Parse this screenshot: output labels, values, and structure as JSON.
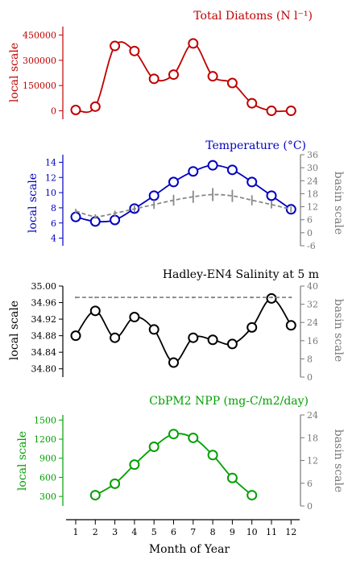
{
  "x_axis": {
    "label": "Month of Year",
    "ticks": [
      "1",
      "2",
      "3",
      "4",
      "5",
      "6",
      "7",
      "8",
      "9",
      "10",
      "11",
      "12"
    ]
  },
  "chart_data": [
    {
      "type": "line",
      "title": "Total Diatoms (N l⁻¹)",
      "ylabel": "local scale",
      "color": "#c00000",
      "ylim": [
        -50000,
        500000
      ],
      "yticks": [
        0,
        150000,
        300000,
        450000
      ],
      "ytick_labels": [
        "0",
        "150000",
        "300000",
        "450000"
      ],
      "x": [
        1,
        2,
        3,
        4,
        5,
        6,
        7,
        8,
        9,
        10,
        11,
        12
      ],
      "series": [
        {
          "values": [
            5000,
            25000,
            385000,
            355000,
            190000,
            215000,
            400000,
            205000,
            165000,
            45000,
            0,
            0
          ]
        }
      ]
    },
    {
      "type": "line",
      "title": "Temperature (°C)",
      "ylabel": "local scale",
      "ylabel_right": "basin scale",
      "color": "#0000c0",
      "ylim": [
        3,
        15
      ],
      "yticks": [
        4,
        6,
        8,
        10,
        12,
        14
      ],
      "ytick_labels": [
        "4",
        "6",
        "8",
        "10",
        "12",
        "14"
      ],
      "ylim_right": [
        -6,
        36
      ],
      "yticks_right": [
        -6,
        0,
        6,
        12,
        18,
        24,
        30,
        36
      ],
      "ytick_labels_right": [
        "-6",
        "0",
        "6",
        "12",
        "18",
        "24",
        "30",
        "36"
      ],
      "x": [
        1,
        2,
        3,
        4,
        5,
        6,
        7,
        8,
        9,
        10,
        11,
        12
      ],
      "series": [
        {
          "values": [
            6.8,
            6.2,
            6.4,
            7.9,
            9.6,
            11.4,
            12.8,
            13.6,
            13.0,
            11.4,
            9.6,
            7.8
          ]
        },
        {
          "axis": "right",
          "values": [
            10.0,
            7.5,
            9.0,
            11.0,
            13.0,
            15.0,
            16.6,
            17.6,
            17.0,
            15.0,
            13.0,
            10.8
          ],
          "error": [
            1,
            1,
            1.2,
            1.5,
            2,
            2.5,
            2.8,
            3,
            2.8,
            2.3,
            1.8,
            1.3
          ]
        }
      ]
    },
    {
      "type": "line",
      "title": "Hadley-EN4 Salinity at 5 m",
      "ylabel": "local scale",
      "ylabel_right": "basin scale",
      "color": "#000000",
      "ylim": [
        34.78,
        35.0
      ],
      "yticks": [
        34.8,
        34.84,
        34.88,
        34.92,
        34.96,
        35.0
      ],
      "ytick_labels": [
        "34.80",
        "34.84",
        "34.88",
        "34.92",
        "34.96",
        "35.00"
      ],
      "ylim_right": [
        0,
        40
      ],
      "yticks_right": [
        0,
        8,
        16,
        24,
        32,
        40
      ],
      "ytick_labels_right": [
        "0",
        "8",
        "16",
        "24",
        "32",
        "40"
      ],
      "x": [
        1,
        2,
        3,
        4,
        5,
        6,
        7,
        8,
        9,
        10,
        11,
        12
      ],
      "series": [
        {
          "values": [
            34.88,
            34.94,
            34.875,
            34.925,
            34.895,
            34.815,
            34.875,
            34.87,
            34.86,
            34.9,
            34.97,
            34.905
          ]
        },
        {
          "axis": "right",
          "values": [
            35,
            35,
            35,
            35,
            35,
            35,
            35,
            35,
            35,
            35,
            35,
            35
          ],
          "error": [
            0.4,
            0.4,
            0.4,
            0.4,
            0.4,
            0.4,
            0.4,
            0.4,
            0.4,
            0.4,
            0.4,
            0.4
          ]
        }
      ]
    },
    {
      "type": "line",
      "title": "CbPM2 NPP (mg-C/m2/day)",
      "ylabel": "local scale",
      "ylabel_right": "basin scale",
      "color": "#00a000",
      "ylim": [
        150,
        1580
      ],
      "yticks": [
        300,
        600,
        900,
        1200,
        1500
      ],
      "ytick_labels": [
        "300",
        "600",
        "900",
        "1200",
        "1500"
      ],
      "ylim_right": [
        0,
        24
      ],
      "yticks_right": [
        0,
        6,
        12,
        18,
        24
      ],
      "ytick_labels_right": [
        "0",
        "6",
        "12",
        "18",
        "24"
      ],
      "x": [
        2,
        3,
        4,
        5,
        6,
        7,
        8,
        9,
        10
      ],
      "series": [
        {
          "values": [
            320,
            500,
            800,
            1080,
            1280,
            1220,
            950,
            590,
            320
          ]
        }
      ]
    }
  ]
}
